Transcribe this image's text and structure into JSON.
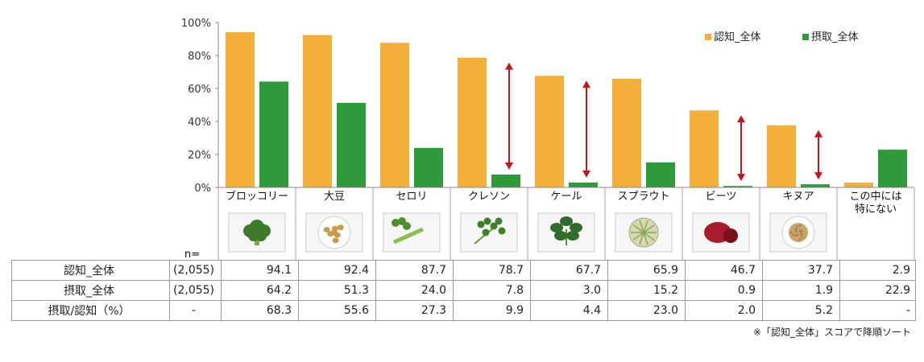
{
  "chart_data": {
    "type": "bar",
    "title": "",
    "xlabel": "",
    "ylabel": "",
    "ylim": [
      0,
      100
    ],
    "y_ticks": [
      "0%",
      "20%",
      "40%",
      "60%",
      "80%",
      "100%"
    ],
    "grid": false,
    "legend_position": "top-right",
    "categories": [
      "ブロッコリー",
      "大豆",
      "セロリ",
      "クレソン",
      "ケール",
      "スプラウト",
      "ビーツ",
      "キヌア",
      "この中には\n特にない"
    ],
    "series": [
      {
        "name": "認知_全体",
        "color": "#f4ae3c",
        "values": [
          94.1,
          92.4,
          87.7,
          78.7,
          67.7,
          65.9,
          46.7,
          37.7,
          2.9
        ]
      },
      {
        "name": "摂取_全体",
        "color": "#2e9a3c",
        "values": [
          64.2,
          51.3,
          24.0,
          7.8,
          3.0,
          15.2,
          0.9,
          1.9,
          22.9
        ]
      }
    ],
    "gap_arrow_categories": [
      "クレソン",
      "ケール",
      "ビーツ",
      "キヌア"
    ],
    "arrow_color": "#c0161c"
  },
  "images": [
    "broccoli",
    "soybeans",
    "celery",
    "watercress",
    "kale",
    "sprouts",
    "beets",
    "quinoa"
  ],
  "table": {
    "n_header": "n=",
    "rows": [
      {
        "label": "認知_全体",
        "n": "(2,055)",
        "values": [
          "94.1",
          "92.4",
          "87.7",
          "78.7",
          "67.7",
          "65.9",
          "46.7",
          "37.7",
          "2.9"
        ]
      },
      {
        "label": "摂取_全体",
        "n": "(2,055)",
        "values": [
          "64.2",
          "51.3",
          "24.0",
          "7.8",
          "3.0",
          "15.2",
          "0.9",
          "1.9",
          "22.9"
        ]
      },
      {
        "label": "摂取/認知（%）",
        "n": "-",
        "values": [
          "68.3",
          "55.6",
          "27.3",
          "9.9",
          "4.4",
          "23.0",
          "2.0",
          "5.2",
          "-"
        ]
      }
    ]
  },
  "footnote": "※「認知_全体」スコアで降順ソート"
}
